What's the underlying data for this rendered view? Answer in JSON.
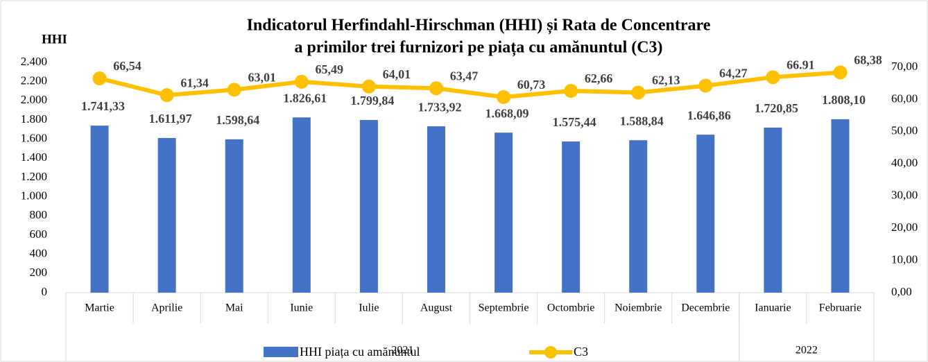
{
  "chart_data": {
    "type": "bar_line",
    "title": [
      "Indicatorul Herfindahl-Hirschman (HHI) și Rata de Concentrare",
      "a primilor trei furnizori pe piața cu amănuntul (C3)"
    ],
    "y_label": "HHI",
    "categories": [
      "Martie",
      "Aprilie",
      "Mai",
      "Iunie",
      "Iulie",
      "August",
      "Septembrie",
      "Octombrie",
      "Noiembrie",
      "Decembrie",
      "Ianuarie",
      "Februarie"
    ],
    "x_groups": [
      {
        "label": "2021",
        "span": 10
      },
      {
        "label": "2022",
        "span": 2
      }
    ],
    "series": [
      {
        "name": "HHI piața cu amănuntul",
        "type": "bar",
        "color": "#4472c4",
        "values": [
          1741.33,
          1611.97,
          1598.64,
          1826.61,
          1799.84,
          1733.92,
          1668.09,
          1575.44,
          1588.84,
          1646.86,
          1720.85,
          1808.1
        ],
        "value_labels": [
          "1.741,33",
          "1.611,97",
          "1.598,64",
          "1.826,61",
          "1.799,84",
          "1.733,92",
          "1.668,09",
          "1.575,44",
          "1.588,84",
          "1.646,86",
          "1.720,85",
          "1.808,10"
        ]
      },
      {
        "name": "C3",
        "type": "line",
        "axis": "y2",
        "color": "#ffc000",
        "values": [
          66.54,
          61.34,
          63.01,
          65.49,
          64.01,
          63.47,
          60.73,
          62.66,
          62.13,
          64.27,
          66.91,
          68.38
        ],
        "value_labels": [
          "66,54",
          "61,34",
          "63,01",
          "65,49",
          "64,01",
          "63,47",
          "60,73",
          "62,66",
          "62,13",
          "64,27",
          "66.91",
          "68,38"
        ]
      }
    ],
    "ylim": [
      0,
      2400
    ],
    "yticks": [
      0,
      200,
      400,
      600,
      800,
      {
        "value": 1000,
        "label": "1.000"
      },
      {
        "value": 1200,
        "label": "1.200"
      },
      {
        "value": 1400,
        "label": "1.400"
      },
      {
        "value": 1600,
        "label": "1.600"
      },
      {
        "value": 1800,
        "label": "1.800"
      },
      {
        "value": 2000,
        "label": "2.000"
      },
      {
        "value": 2200,
        "label": "2.200"
      },
      {
        "value": 2400,
        "label": "2.400"
      }
    ],
    "y2lim": [
      0,
      71.5
    ],
    "y2ticks": [
      {
        "value": 0,
        "label": "0,00"
      },
      {
        "value": 10,
        "label": "10,00"
      },
      {
        "value": 20,
        "label": "20,00"
      },
      {
        "value": 30,
        "label": "30,00"
      },
      {
        "value": 40,
        "label": "40,00"
      },
      {
        "value": 50,
        "label": "50,00"
      },
      {
        "value": 60,
        "label": "60,00"
      },
      {
        "value": 70,
        "label": "70,00"
      }
    ],
    "grid": false
  }
}
